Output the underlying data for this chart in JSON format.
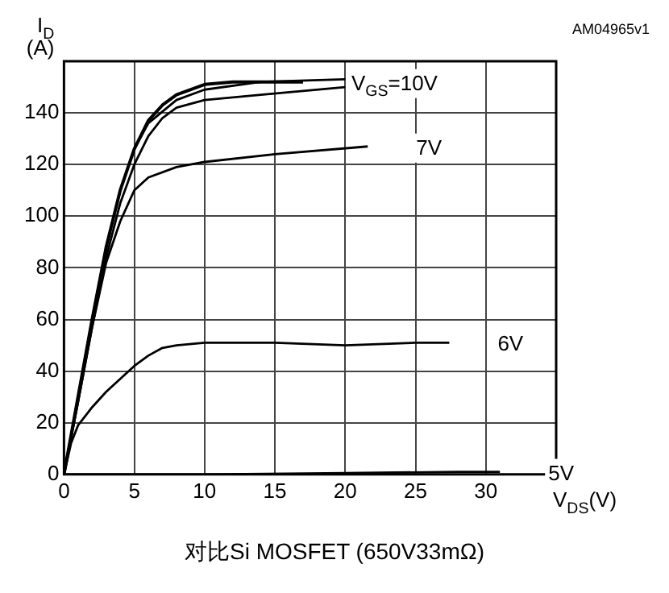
{
  "chart_data": {
    "type": "line",
    "title": "对比Si MOSFET  (650V33mΩ)",
    "xlabel": "V$_{DS}$(V)",
    "ylabel": "I$_{D}$ (A)",
    "xlim": [
      0,
      35
    ],
    "xticks": [
      0,
      5,
      10,
      15,
      20,
      25,
      30
    ],
    "ylim": [
      0,
      160
    ],
    "yticks": [
      0,
      20,
      40,
      60,
      80,
      100,
      120,
      140
    ],
    "grid": true,
    "legend": false,
    "marker": "none",
    "line_style": "solid",
    "series": [
      {
        "name": "V$_{GS}$=10V",
        "color": "#000000",
        "x": [
          0,
          1,
          2,
          3,
          4,
          5,
          6,
          7,
          8,
          10,
          12,
          17
        ],
        "values": [
          0,
          30,
          60,
          88,
          110,
          126,
          137,
          143,
          147,
          151,
          152,
          152
        ]
      },
      {
        "color": "#000000",
        "x": [
          0,
          1,
          2,
          3,
          4,
          5,
          6,
          8,
          10,
          14,
          20
        ],
        "values": [
          0,
          30,
          60,
          88,
          110,
          126,
          136,
          145,
          149,
          152,
          153
        ]
      },
      {
        "color": "#000000",
        "x": [
          0,
          1,
          2,
          3,
          4,
          5,
          6,
          7,
          8,
          10,
          14,
          20
        ],
        "values": [
          0,
          28,
          57,
          84,
          105,
          120,
          131,
          138,
          142,
          145,
          147,
          150
        ]
      },
      {
        "name": "7V",
        "color": "#000000",
        "x": [
          0,
          1,
          2,
          3,
          4,
          5,
          6,
          8,
          10,
          15,
          21.6
        ],
        "values": [
          0,
          28,
          57,
          82,
          98,
          110,
          115,
          119,
          121,
          124,
          127
        ]
      },
      {
        "name": "6V",
        "color": "#000000",
        "x": [
          0,
          0.5,
          1,
          2,
          3,
          4,
          5,
          6,
          7,
          8,
          10,
          15,
          20,
          25,
          27.4
        ],
        "values": [
          0,
          12,
          19,
          26,
          32,
          37,
          42,
          46,
          49,
          50,
          51,
          51,
          50,
          51,
          51
        ]
      },
      {
        "name": "5V",
        "color": "#000000",
        "x": [
          0,
          10,
          20,
          28,
          31
        ],
        "values": [
          0,
          0,
          0.5,
          1,
          1
        ]
      }
    ],
    "annotations": [
      "AM04965v1"
    ]
  }
}
